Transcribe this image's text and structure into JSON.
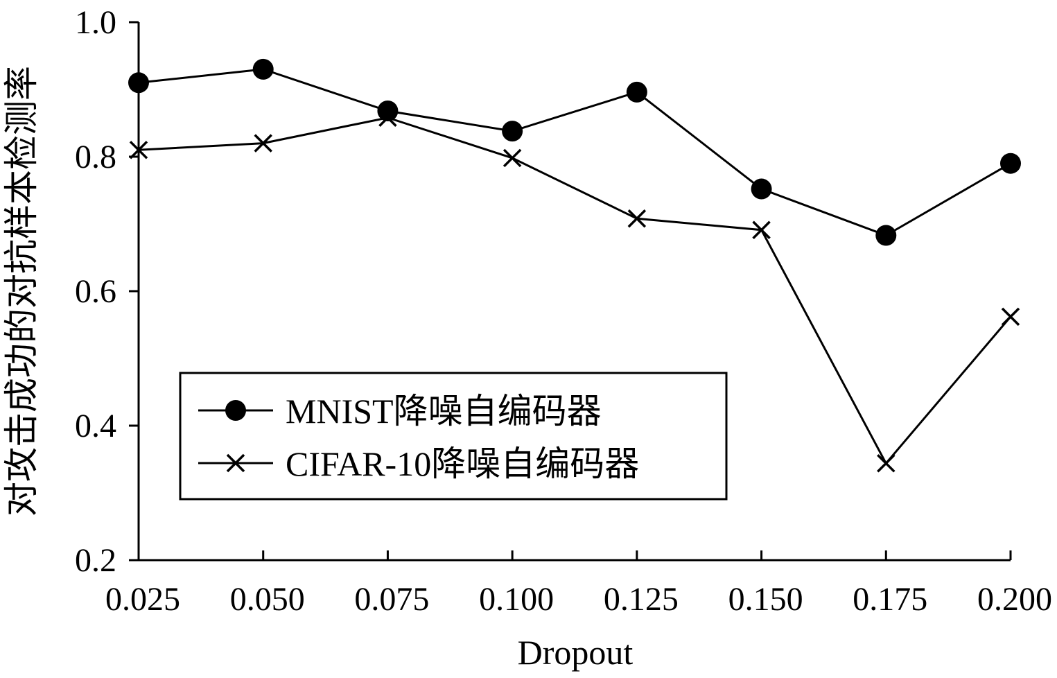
{
  "chart_data": {
    "type": "line",
    "title": "",
    "xlabel": "Dropout",
    "ylabel": "对攻击成功的对抗样本检测率",
    "x": [
      0.025,
      0.05,
      0.075,
      0.1,
      0.125,
      0.15,
      0.175,
      0.2
    ],
    "x_tick_labels": [
      "0.025",
      "0.050",
      "0.075",
      "0.100",
      "0.125",
      "0.150",
      "0.175",
      "0.200"
    ],
    "y_ticks": [
      0.2,
      0.4,
      0.6,
      0.8,
      1.0
    ],
    "y_tick_labels": [
      "0.2",
      "0.4",
      "0.6",
      "0.8",
      "1.0"
    ],
    "ylim": [
      0.2,
      1.0
    ],
    "grid": false,
    "legend_position": "lower-left",
    "series": [
      {
        "name": "MNIST降噪自编码器",
        "marker": "circle",
        "values": [
          0.91,
          0.93,
          0.868,
          0.838,
          0.896,
          0.752,
          0.683,
          0.79
        ]
      },
      {
        "name": "CIFAR-10降噪自编码器",
        "marker": "x",
        "values": [
          0.81,
          0.82,
          0.858,
          0.798,
          0.708,
          0.691,
          0.344,
          0.562
        ]
      }
    ]
  }
}
